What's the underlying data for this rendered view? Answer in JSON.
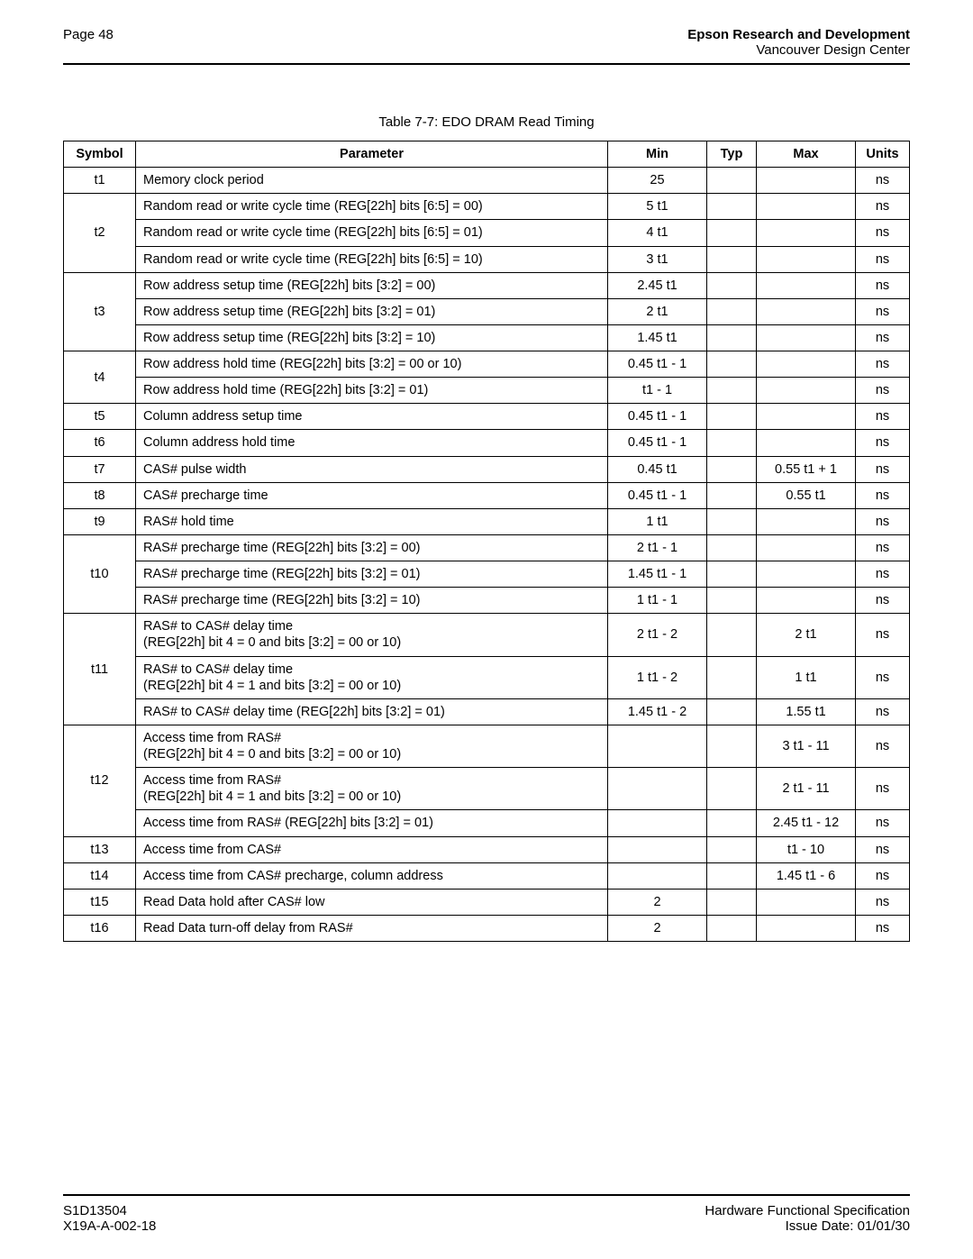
{
  "header": {
    "page_label": "Page 48",
    "org_bold": "Epson Research and Development",
    "org_sub": "Vancouver Design Center"
  },
  "caption": "Table 7-7: EDO DRAM Read Timing",
  "columns": [
    "Symbol",
    "Parameter",
    "Min",
    "Typ",
    "Max",
    "Units"
  ],
  "groups": [
    {
      "symbol": "t1",
      "rows": [
        {
          "param": "Memory clock period",
          "min": "25",
          "typ": "",
          "max": "",
          "units": "ns"
        }
      ]
    },
    {
      "symbol": "t2",
      "rows": [
        {
          "param": "Random read or write cycle time (REG[22h] bits [6:5] = 00)",
          "min": "5 t1",
          "typ": "",
          "max": "",
          "units": "ns"
        },
        {
          "param": "Random read or write cycle time (REG[22h] bits [6:5] = 01)",
          "min": "4 t1",
          "typ": "",
          "max": "",
          "units": "ns"
        },
        {
          "param": "Random read or write cycle time (REG[22h] bits [6:5] = 10)",
          "min": "3 t1",
          "typ": "",
          "max": "",
          "units": "ns"
        }
      ]
    },
    {
      "symbol": "t3",
      "rows": [
        {
          "param": "Row address setup time (REG[22h] bits [3:2] = 00)",
          "min": "2.45 t1",
          "typ": "",
          "max": "",
          "units": "ns"
        },
        {
          "param": "Row address setup time (REG[22h] bits [3:2] = 01)",
          "min": "2 t1",
          "typ": "",
          "max": "",
          "units": "ns"
        },
        {
          "param": "Row address setup time (REG[22h] bits [3:2] = 10)",
          "min": "1.45 t1",
          "typ": "",
          "max": "",
          "units": "ns"
        }
      ]
    },
    {
      "symbol": "t4",
      "rows": [
        {
          "param": "Row address hold time (REG[22h] bits [3:2] = 00 or 10)",
          "min": "0.45 t1 - 1",
          "typ": "",
          "max": "",
          "units": "ns"
        },
        {
          "param": "Row address hold time (REG[22h] bits [3:2] = 01)",
          "min": "t1 - 1",
          "typ": "",
          "max": "",
          "units": "ns"
        }
      ]
    },
    {
      "symbol": "t5",
      "rows": [
        {
          "param": "Column address setup time",
          "min": "0.45 t1 - 1",
          "typ": "",
          "max": "",
          "units": "ns"
        }
      ]
    },
    {
      "symbol": "t6",
      "rows": [
        {
          "param": "Column address hold time",
          "min": "0.45 t1 - 1",
          "typ": "",
          "max": "",
          "units": "ns"
        }
      ]
    },
    {
      "symbol": "t7",
      "rows": [
        {
          "param": "CAS# pulse width",
          "min": "0.45 t1",
          "typ": "",
          "max": "0.55 t1 + 1",
          "units": "ns"
        }
      ]
    },
    {
      "symbol": "t8",
      "rows": [
        {
          "param": "CAS# precharge time",
          "min": "0.45 t1 - 1",
          "typ": "",
          "max": "0.55 t1",
          "units": "ns"
        }
      ]
    },
    {
      "symbol": "t9",
      "rows": [
        {
          "param": "RAS# hold time",
          "min": "1 t1",
          "typ": "",
          "max": "",
          "units": "ns"
        }
      ]
    },
    {
      "symbol": "t10",
      "rows": [
        {
          "param": "RAS# precharge time (REG[22h] bits [3:2] = 00)",
          "min": "2 t1 - 1",
          "typ": "",
          "max": "",
          "units": "ns"
        },
        {
          "param": "RAS# precharge time (REG[22h] bits [3:2] = 01)",
          "min": "1.45 t1 - 1",
          "typ": "",
          "max": "",
          "units": "ns"
        },
        {
          "param": "RAS# precharge time (REG[22h] bits [3:2] = 10)",
          "min": "1 t1 - 1",
          "typ": "",
          "max": "",
          "units": "ns"
        }
      ]
    },
    {
      "symbol": "t11",
      "rows": [
        {
          "param": "RAS# to CAS# delay time\n(REG[22h] bit 4 = 0 and bits [3:2] = 00 or 10)",
          "min": "2 t1 - 2",
          "typ": "",
          "max": "2 t1",
          "units": "ns"
        },
        {
          "param": "RAS# to CAS# delay time\n(REG[22h] bit 4 = 1 and bits [3:2] = 00 or 10)",
          "min": "1 t1 - 2",
          "typ": "",
          "max": "1 t1",
          "units": "ns"
        },
        {
          "param": "RAS# to CAS# delay time (REG[22h] bits [3:2] = 01)",
          "min": "1.45 t1 - 2",
          "typ": "",
          "max": "1.55 t1",
          "units": "ns"
        }
      ]
    },
    {
      "symbol": "t12",
      "rows": [
        {
          "param": "Access time from RAS#\n(REG[22h] bit 4 = 0 and bits [3:2] = 00 or 10)",
          "min": "",
          "typ": "",
          "max": "3 t1 - 11",
          "units": "ns"
        },
        {
          "param": "Access time from RAS#\n(REG[22h] bit 4 = 1 and bits [3:2] = 00 or 10)",
          "min": "",
          "typ": "",
          "max": "2 t1 - 11",
          "units": "ns"
        },
        {
          "param": "Access time from RAS# (REG[22h] bits [3:2] = 01)",
          "min": "",
          "typ": "",
          "max": "2.45 t1 - 12",
          "units": "ns"
        }
      ]
    },
    {
      "symbol": "t13",
      "rows": [
        {
          "param": "Access time from CAS#",
          "min": "",
          "typ": "",
          "max": "t1 - 10",
          "units": "ns"
        }
      ]
    },
    {
      "symbol": "t14",
      "rows": [
        {
          "param": "Access time from CAS# precharge, column address",
          "min": "",
          "typ": "",
          "max": "1.45 t1 - 6",
          "units": "ns"
        }
      ]
    },
    {
      "symbol": "t15",
      "rows": [
        {
          "param": "Read Data hold after CAS# low",
          "min": "2",
          "typ": "",
          "max": "",
          "units": "ns"
        }
      ]
    },
    {
      "symbol": "t16",
      "rows": [
        {
          "param": "Read Data turn-off delay from RAS#",
          "min": "2",
          "typ": "",
          "max": "",
          "units": "ns"
        }
      ]
    }
  ],
  "footer": {
    "left1": "S1D13504",
    "left2": "X19A-A-002-18",
    "right1": "Hardware Functional Specification",
    "right2": "Issue Date: 01/01/30"
  }
}
